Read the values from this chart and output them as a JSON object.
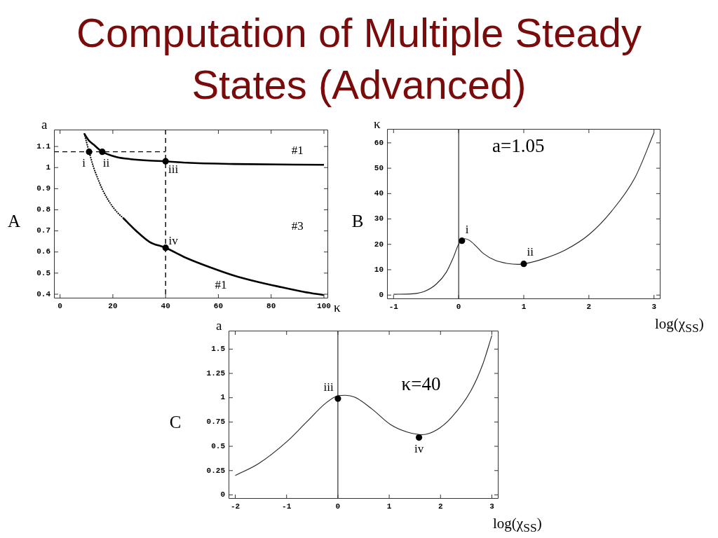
{
  "chart_data": [
    {
      "type": "line",
      "title": "Computation of Multiple Steady States (Advanced)",
      "xlabel": "κ",
      "ylabel": "a",
      "xlim": [
        -2.3,
        101.6
      ],
      "xticks": [
        0,
        20,
        40,
        60,
        80,
        100
      ],
      "ylim": [
        0.38,
        1.18
      ],
      "yticks": [
        0.4,
        0.5,
        0.6,
        0.7,
        0.8,
        0.9,
        1,
        1.1
      ],
      "series": [
        {
          "color": "#000000",
          "line_style": "solid",
          "x": [
            9.2,
            10.8,
            12.6,
            16,
            21.5,
            26.8,
            33.9,
            40,
            48,
            66,
            100
          ],
          "values": [
            1.16,
            1.13,
            1.11,
            1.075,
            1.05,
            1.04,
            1.033,
            1.03,
            1.023,
            1.017,
            1.013
          ]
        },
        {
          "color": "#000000",
          "line_style": "dotted",
          "x": [
            9.2,
            11,
            12.6,
            14.4,
            16.1,
            18.8,
            21.5,
            24
          ],
          "values": [
            1.16,
            1.075,
            1.005,
            0.945,
            0.895,
            0.835,
            0.79,
            0.76
          ]
        },
        {
          "color": "#000000",
          "line_style": "solid",
          "x": [
            24,
            28.6,
            33.9,
            40,
            48,
            57,
            66,
            75,
            84,
            92.5,
            100
          ],
          "values": [
            0.76,
            0.703,
            0.648,
            0.62,
            0.571,
            0.527,
            0.488,
            0.458,
            0.433,
            0.411,
            0.396
          ]
        },
        {
          "color": "#000000",
          "line_style": "dashed",
          "x": [
            -2.3,
            40
          ],
          "values": [
            1.075,
            1.075
          ]
        },
        {
          "type": "scatter",
          "color": "#000000",
          "marker": "circle",
          "x": [
            11,
            16,
            40,
            40
          ],
          "values": [
            1.075,
            1.075,
            1.03,
            0.62
          ]
        }
      ],
      "ref_lines": [
        {
          "axis": "x",
          "value": 40,
          "line_style": "dashed",
          "color": "#000000"
        }
      ],
      "annotations": [
        "A",
        {
          "text": "i",
          "x": 11,
          "y": 1.075
        },
        {
          "text": "ii",
          "x": 16,
          "y": 1.075
        },
        {
          "text": "iii",
          "x": 40,
          "y": 1.03
        },
        {
          "text": "iv",
          "x": 40,
          "y": 0.62
        },
        "#1",
        "#3",
        "#1"
      ]
    },
    {
      "type": "line",
      "xlabel": "log(χ$_{SS}$)",
      "ylabel": "κ",
      "xlim": [
        -1.1,
        3.1
      ],
      "xticks": [
        -1,
        0,
        1,
        2,
        3
      ],
      "ylim": [
        -1.6,
        65.5
      ],
      "yticks": [
        0,
        10,
        20,
        30,
        40,
        50,
        60
      ],
      "series": [
        {
          "color": "#222222",
          "line_style": "solid",
          "x": [
            -1,
            -0.7,
            -0.52,
            -0.34,
            -0.19,
            -0.085,
            0,
            0.05,
            0.094,
            0.17,
            0.27,
            0.38,
            0.56,
            0.74,
            0.92,
            1.0,
            1.28,
            1.64,
            2.0,
            2.35,
            2.71,
            3.0
          ],
          "values": [
            0.3,
            0.5,
            1.5,
            4.4,
            9,
            14.6,
            20.1,
            21.4,
            22.2,
            21.5,
            19.2,
            16.4,
            13.7,
            12.5,
            12.1,
            12.3,
            14.1,
            17.8,
            23.8,
            33.1,
            46.4,
            64
          ]
        },
        {
          "type": "scatter",
          "color": "#000000",
          "marker": "circle",
          "x": [
            0.05,
            1.0
          ],
          "values": [
            21.4,
            12.3
          ]
        }
      ],
      "ref_lines": [
        {
          "axis": "x",
          "value": 0,
          "line_style": "solid",
          "color": "#000000"
        }
      ],
      "annotations": [
        "B",
        {
          "text": "i",
          "x": 0.05,
          "y": 21.4
        },
        {
          "text": "ii",
          "x": 1.0,
          "y": 12.3
        },
        "a=1.05"
      ]
    },
    {
      "type": "line",
      "xlabel": "log(χ$_{SS}$)",
      "ylabel": "a",
      "xlim": [
        -2.13,
        3.13
      ],
      "xticks": [
        -2,
        -1,
        0,
        1,
        2,
        3
      ],
      "ylim": [
        -0.04,
        1.69
      ],
      "yticks": [
        0,
        0.25,
        0.5,
        0.75,
        1,
        1.25,
        1.5
      ],
      "series": [
        {
          "color": "#222222",
          "line_style": "solid",
          "x": [
            -2,
            -1.55,
            -0.99,
            -0.61,
            -0.235,
            0,
            0.14,
            0.33,
            0.66,
            1.035,
            1.36,
            1.65,
            1.93,
            2.21,
            2.59,
            2.82,
            3.0
          ],
          "values": [
            0.2,
            0.32,
            0.55,
            0.75,
            0.945,
            1.02,
            1.025,
            1.005,
            0.885,
            0.72,
            0.645,
            0.62,
            0.67,
            0.795,
            1.07,
            1.34,
            1.64
          ]
        },
        {
          "type": "scatter",
          "color": "#000000",
          "marker": "circle",
          "x": [
            0,
            1.58
          ],
          "values": [
            0.99,
            0.59
          ]
        }
      ],
      "ref_lines": [
        {
          "axis": "x",
          "value": 0,
          "line_style": "solid",
          "color": "#000000"
        }
      ],
      "annotations": [
        "C",
        {
          "text": "iii",
          "x": 0,
          "y": 0.99
        },
        {
          "text": "iv",
          "x": 1.58,
          "y": 0.59
        },
        "κ=40"
      ]
    }
  ]
}
